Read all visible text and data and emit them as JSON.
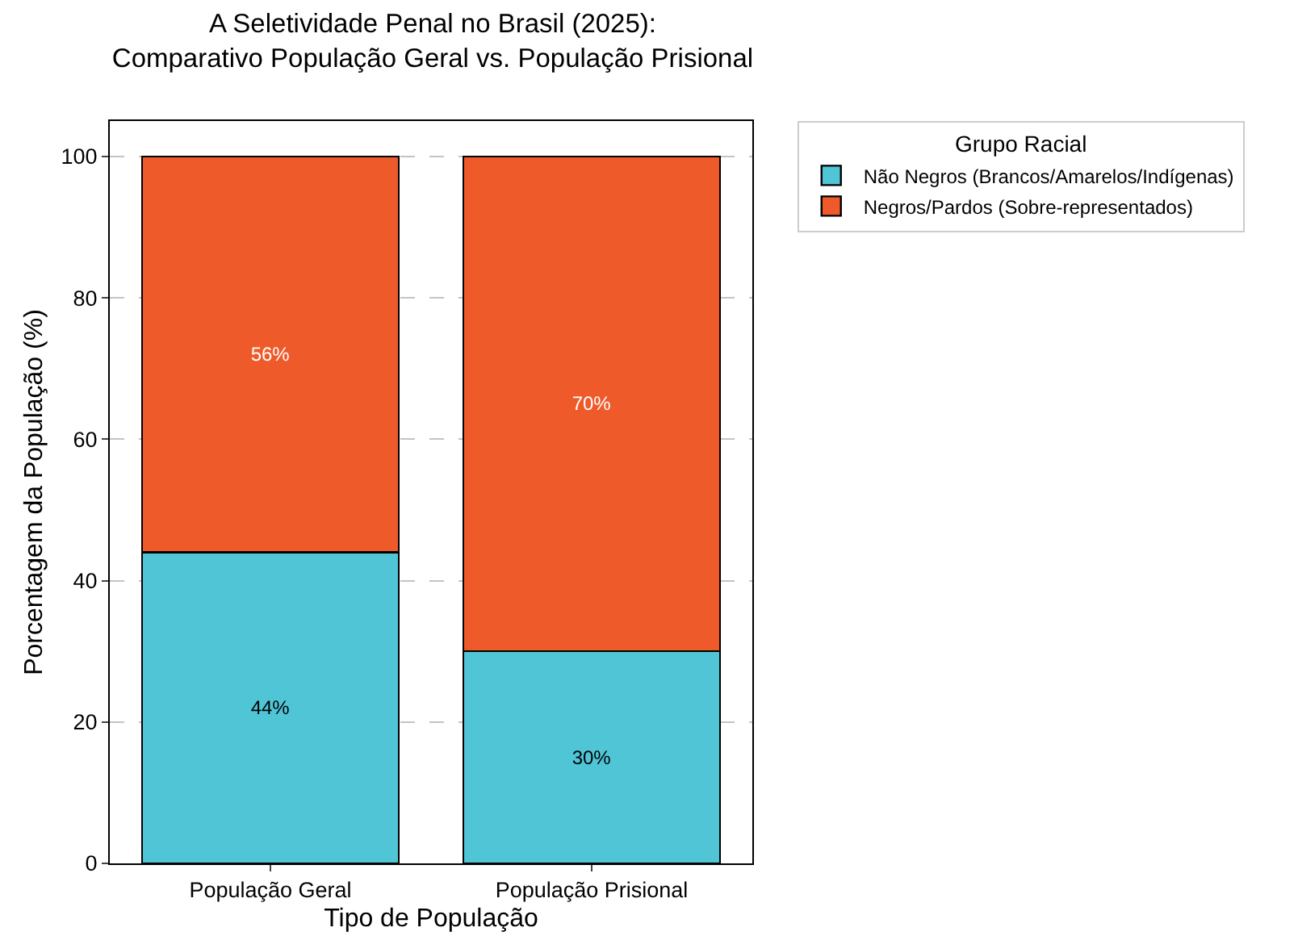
{
  "chart_data": {
    "type": "bar",
    "title": "A Seletividade Penal no Brasil (2025):\nComparativo População Geral vs. População Prisional",
    "xlabel": "Tipo de População",
    "ylabel": "Porcentagem da População (%)",
    "legend_title": "Grupo Racial",
    "categories": [
      "População Geral",
      "População Prisional"
    ],
    "series": [
      {
        "name": "Não Negros (Brancos/Amarelos/Indígenas)",
        "color": "#4fc5d6",
        "values": [
          44,
          30
        ],
        "value_labels": [
          "44%",
          "30%"
        ]
      },
      {
        "name": "Negros/Pardos (Sobre-representados)",
        "color": "#ef5a2a",
        "values": [
          56,
          70
        ],
        "value_labels": [
          "56%",
          "70%"
        ]
      }
    ],
    "stacked": true,
    "ylim": [
      0,
      105
    ],
    "yticks": [
      0,
      20,
      40,
      60,
      80,
      100
    ],
    "grid": "y",
    "legend": "right"
  }
}
